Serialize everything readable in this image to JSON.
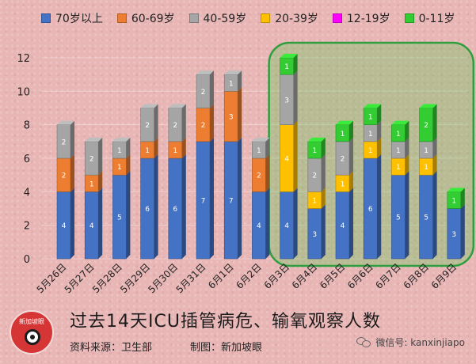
{
  "legend": [
    {
      "label": "70岁以上",
      "color": "#4472c4"
    },
    {
      "label": "60-69岁",
      "color": "#ed7d31"
    },
    {
      "label": "40-59岁",
      "color": "#a5a5a5"
    },
    {
      "label": "20-39岁",
      "color": "#ffc000"
    },
    {
      "label": "12-19岁",
      "color": "#ff00ff"
    },
    {
      "label": "0-11岁",
      "color": "#33cc33"
    }
  ],
  "footer": {
    "title": "过去14天ICU插管病危、输氧观察人数",
    "source": "资料来源：卫生部",
    "credit": "制图：新加坡眼",
    "wechat": "微信号: kanxinjiapo"
  },
  "logo": {
    "text": "新加坡眼"
  },
  "colors": {
    "highlight_border": "#2e9e3e",
    "highlight_fill": "rgba(60,200,60,0.28)"
  },
  "chart_data": {
    "type": "bar",
    "stacked": true,
    "categories": [
      "5月26日",
      "5月27日",
      "5月28日",
      "5月29日",
      "5月30日",
      "5月31日",
      "6月1日",
      "6月2日",
      "6月3日",
      "6月4日",
      "6月5日",
      "6月6日",
      "6月7日",
      "6月8日",
      "6月9日"
    ],
    "series": [
      {
        "name": "70岁以上",
        "color": "#4472c4",
        "values": [
          4,
          4,
          5,
          6,
          6,
          7,
          7,
          4,
          4,
          3,
          4,
          6,
          5,
          5,
          3
        ]
      },
      {
        "name": "60-69岁",
        "color": "#ed7d31",
        "values": [
          2,
          1,
          1,
          1,
          1,
          2,
          3,
          2,
          0,
          0,
          0,
          0,
          0,
          0,
          0
        ]
      },
      {
        "name": "20-39岁",
        "color": "#ffc000",
        "values": [
          0,
          0,
          0,
          0,
          0,
          0,
          0,
          0,
          4,
          1,
          1,
          1,
          1,
          1,
          0
        ]
      },
      {
        "name": "40-59岁",
        "color": "#a5a5a5",
        "values": [
          2,
          2,
          1,
          2,
          2,
          2,
          1,
          1,
          3,
          2,
          2,
          1,
          1,
          1,
          0
        ]
      },
      {
        "name": "12-19岁",
        "color": "#ff00ff",
        "values": [
          0,
          0,
          0,
          0,
          0,
          0,
          0,
          0,
          0,
          0,
          0,
          0,
          0,
          0,
          0
        ]
      },
      {
        "name": "0-11岁",
        "color": "#33cc33",
        "values": [
          0,
          0,
          0,
          0,
          0,
          0,
          0,
          0,
          1,
          1,
          1,
          1,
          1,
          2,
          1
        ]
      }
    ],
    "y_ticks": [
      0,
      2,
      4,
      6,
      8,
      10,
      12
    ],
    "ylim": [
      0,
      12
    ],
    "grid": true,
    "legend_position": "top",
    "highlight_range": [
      "6月3日",
      "6月9日"
    ]
  }
}
